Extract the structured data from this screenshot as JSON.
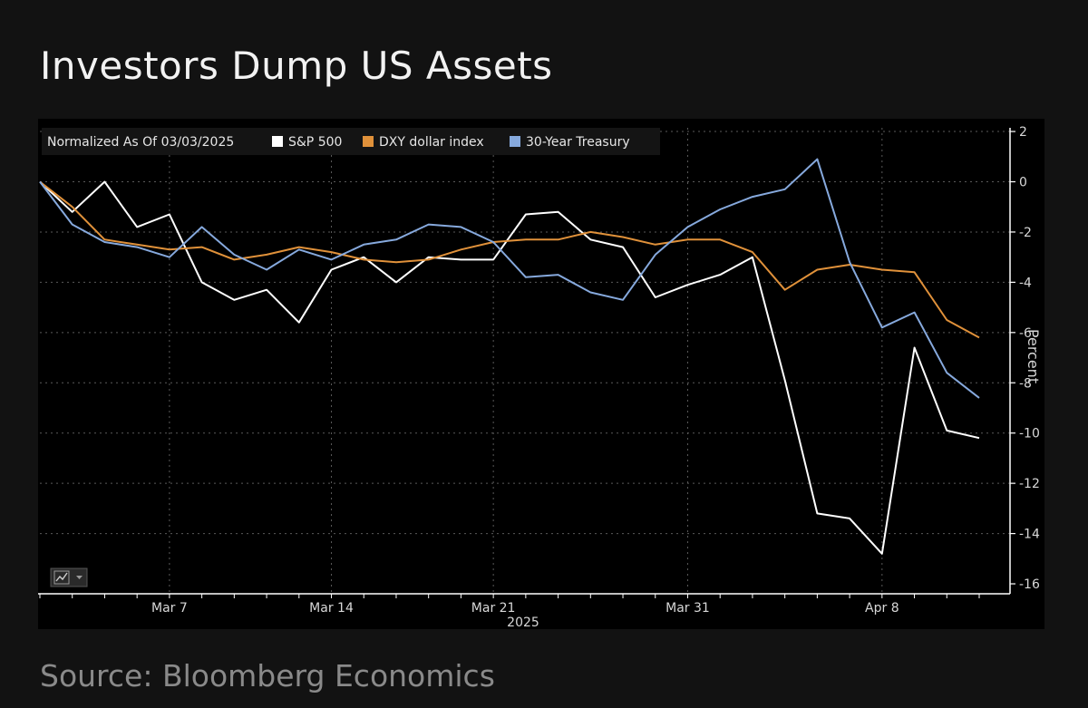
{
  "title": "Investors Dump US Assets",
  "source": "Source: Bloomberg Economics",
  "chart_data": {
    "type": "line",
    "legend_position": "top-left",
    "legend_title": "Normalized As Of 03/03/2025",
    "ylabel": "Percent",
    "xlabel": "2025",
    "ylim": [
      -16,
      2
    ],
    "yticks": [
      2,
      0,
      -2,
      -4,
      -6,
      -8,
      -10,
      -12,
      -14,
      -16
    ],
    "ytick_labels": [
      "2",
      "0",
      "-2",
      "-4",
      "-6",
      "-8",
      "-10",
      "-12",
      "-14",
      "-16"
    ],
    "y_axis_position": "right",
    "grid": true,
    "x": [
      "2025-03-03",
      "2025-03-04",
      "2025-03-05",
      "2025-03-06",
      "2025-03-07",
      "2025-03-10",
      "2025-03-11",
      "2025-03-12",
      "2025-03-13",
      "2025-03-14",
      "2025-03-17",
      "2025-03-18",
      "2025-03-19",
      "2025-03-20",
      "2025-03-21",
      "2025-03-24",
      "2025-03-25",
      "2025-03-26",
      "2025-03-27",
      "2025-03-28",
      "2025-03-31",
      "2025-04-01",
      "2025-04-02",
      "2025-04-03",
      "2025-04-04",
      "2025-04-07",
      "2025-04-08",
      "2025-04-09",
      "2025-04-10",
      "2025-04-11"
    ],
    "x_ticks": [
      {
        "label": "Mar 7",
        "date": "2025-03-07"
      },
      {
        "label": "Mar 14",
        "date": "2025-03-14"
      },
      {
        "label": "Mar 21",
        "date": "2025-03-21"
      },
      {
        "label": "Mar 31",
        "date": "2025-03-31"
      },
      {
        "label": "Apr 8",
        "date": "2025-04-08"
      }
    ],
    "series": [
      {
        "name": "S&P 500",
        "color": "#ffffff",
        "values": [
          0.0,
          -1.2,
          0.0,
          -1.8,
          -1.3,
          -4.0,
          -4.7,
          -4.3,
          -5.6,
          -3.5,
          -3.0,
          -4.0,
          -3.0,
          -3.1,
          -3.1,
          -1.3,
          -1.2,
          -2.3,
          -2.6,
          -4.6,
          -4.1,
          -3.7,
          -3.0,
          -7.9,
          -13.2,
          -13.4,
          -14.8,
          -6.6,
          -9.9,
          -10.2
        ]
      },
      {
        "name": "DXY dollar index",
        "color": "#e0913a",
        "values": [
          0.0,
          -1.0,
          -2.3,
          -2.5,
          -2.7,
          -2.6,
          -3.1,
          -2.9,
          -2.6,
          -2.8,
          -3.1,
          -3.2,
          -3.1,
          -2.7,
          -2.4,
          -2.3,
          -2.3,
          -2.0,
          -2.2,
          -2.5,
          -2.3,
          -2.3,
          -2.8,
          -4.3,
          -3.5,
          -3.3,
          -3.5,
          -3.6,
          -5.5,
          -6.2
        ]
      },
      {
        "name": "30-Year Treasury",
        "color": "#86a9dd",
        "values": [
          0.0,
          -1.7,
          -2.4,
          -2.6,
          -3.0,
          -1.8,
          -2.9,
          -3.5,
          -2.7,
          -3.1,
          -2.5,
          -2.3,
          -1.7,
          -1.8,
          -2.4,
          -3.8,
          -3.7,
          -4.4,
          -4.7,
          -2.9,
          -1.8,
          -1.1,
          -0.6,
          -0.3,
          0.9,
          -3.2,
          -5.8,
          -5.2,
          -7.6,
          -8.6
        ]
      }
    ]
  },
  "toolbar": {
    "icon": "line-chart-icon",
    "dropdown_icon": "caret-down-icon"
  }
}
